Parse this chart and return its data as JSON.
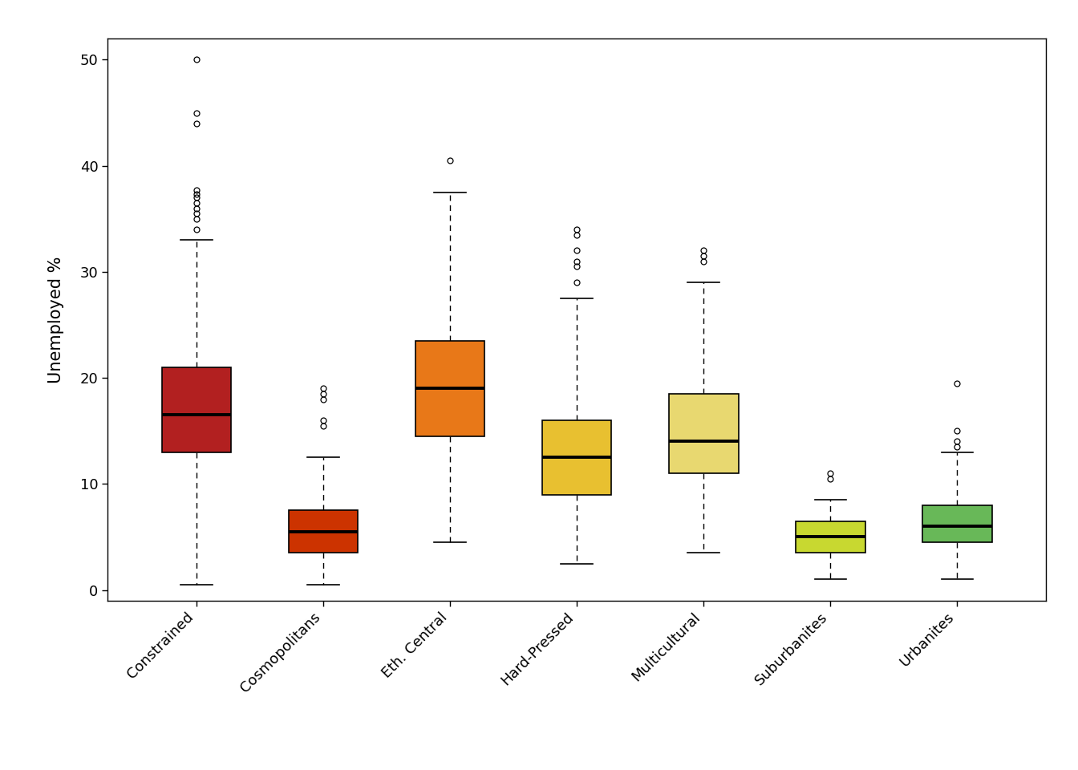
{
  "categories": [
    "Constrained",
    "Cosmopolitans",
    "Eth. Central",
    "Hard-Pressed",
    "Multicultural",
    "Suburbanites",
    "Urbanites"
  ],
  "colors": [
    "#b22020",
    "#cc3300",
    "#e87818",
    "#e8c030",
    "#e8d870",
    "#c8d830",
    "#68b858"
  ],
  "ylabel": "Unemployed %",
  "ylim": [
    -1,
    52
  ],
  "yticks": [
    0,
    10,
    20,
    30,
    40,
    50
  ],
  "background_color": "#ffffff",
  "boxes": [
    {
      "name": "Constrained",
      "q1": 13.0,
      "median": 16.5,
      "q3": 21.0,
      "whisker_low": 0.5,
      "whisker_high": 33.0,
      "outliers": [
        34.0,
        35.0,
        35.5,
        36.0,
        36.5,
        37.0,
        37.3,
        37.7,
        44.0,
        45.0,
        50.0
      ]
    },
    {
      "name": "Cosmopolitans",
      "q1": 3.5,
      "median": 5.5,
      "q3": 7.5,
      "whisker_low": 0.5,
      "whisker_high": 12.5,
      "outliers": [
        15.5,
        16.0,
        18.0,
        18.5,
        19.0
      ]
    },
    {
      "name": "Eth. Central",
      "q1": 14.5,
      "median": 19.0,
      "q3": 23.5,
      "whisker_low": 4.5,
      "whisker_high": 37.5,
      "outliers": [
        40.5
      ]
    },
    {
      "name": "Hard-Pressed",
      "q1": 9.0,
      "median": 12.5,
      "q3": 16.0,
      "whisker_low": 2.5,
      "whisker_high": 27.5,
      "outliers": [
        29.0,
        30.5,
        31.0,
        32.0,
        33.5,
        34.0
      ]
    },
    {
      "name": "Multicultural",
      "q1": 11.0,
      "median": 14.0,
      "q3": 18.5,
      "whisker_low": 3.5,
      "whisker_high": 29.0,
      "outliers": [
        31.0,
        31.5,
        32.0
      ]
    },
    {
      "name": "Suburbanites",
      "q1": 3.5,
      "median": 5.0,
      "q3": 6.5,
      "whisker_low": 1.0,
      "whisker_high": 8.5,
      "outliers": [
        10.5,
        11.0
      ]
    },
    {
      "name": "Urbanites",
      "q1": 4.5,
      "median": 6.0,
      "q3": 8.0,
      "whisker_low": 1.0,
      "whisker_high": 13.0,
      "outliers": [
        13.5,
        14.0,
        15.0,
        19.5
      ]
    }
  ]
}
